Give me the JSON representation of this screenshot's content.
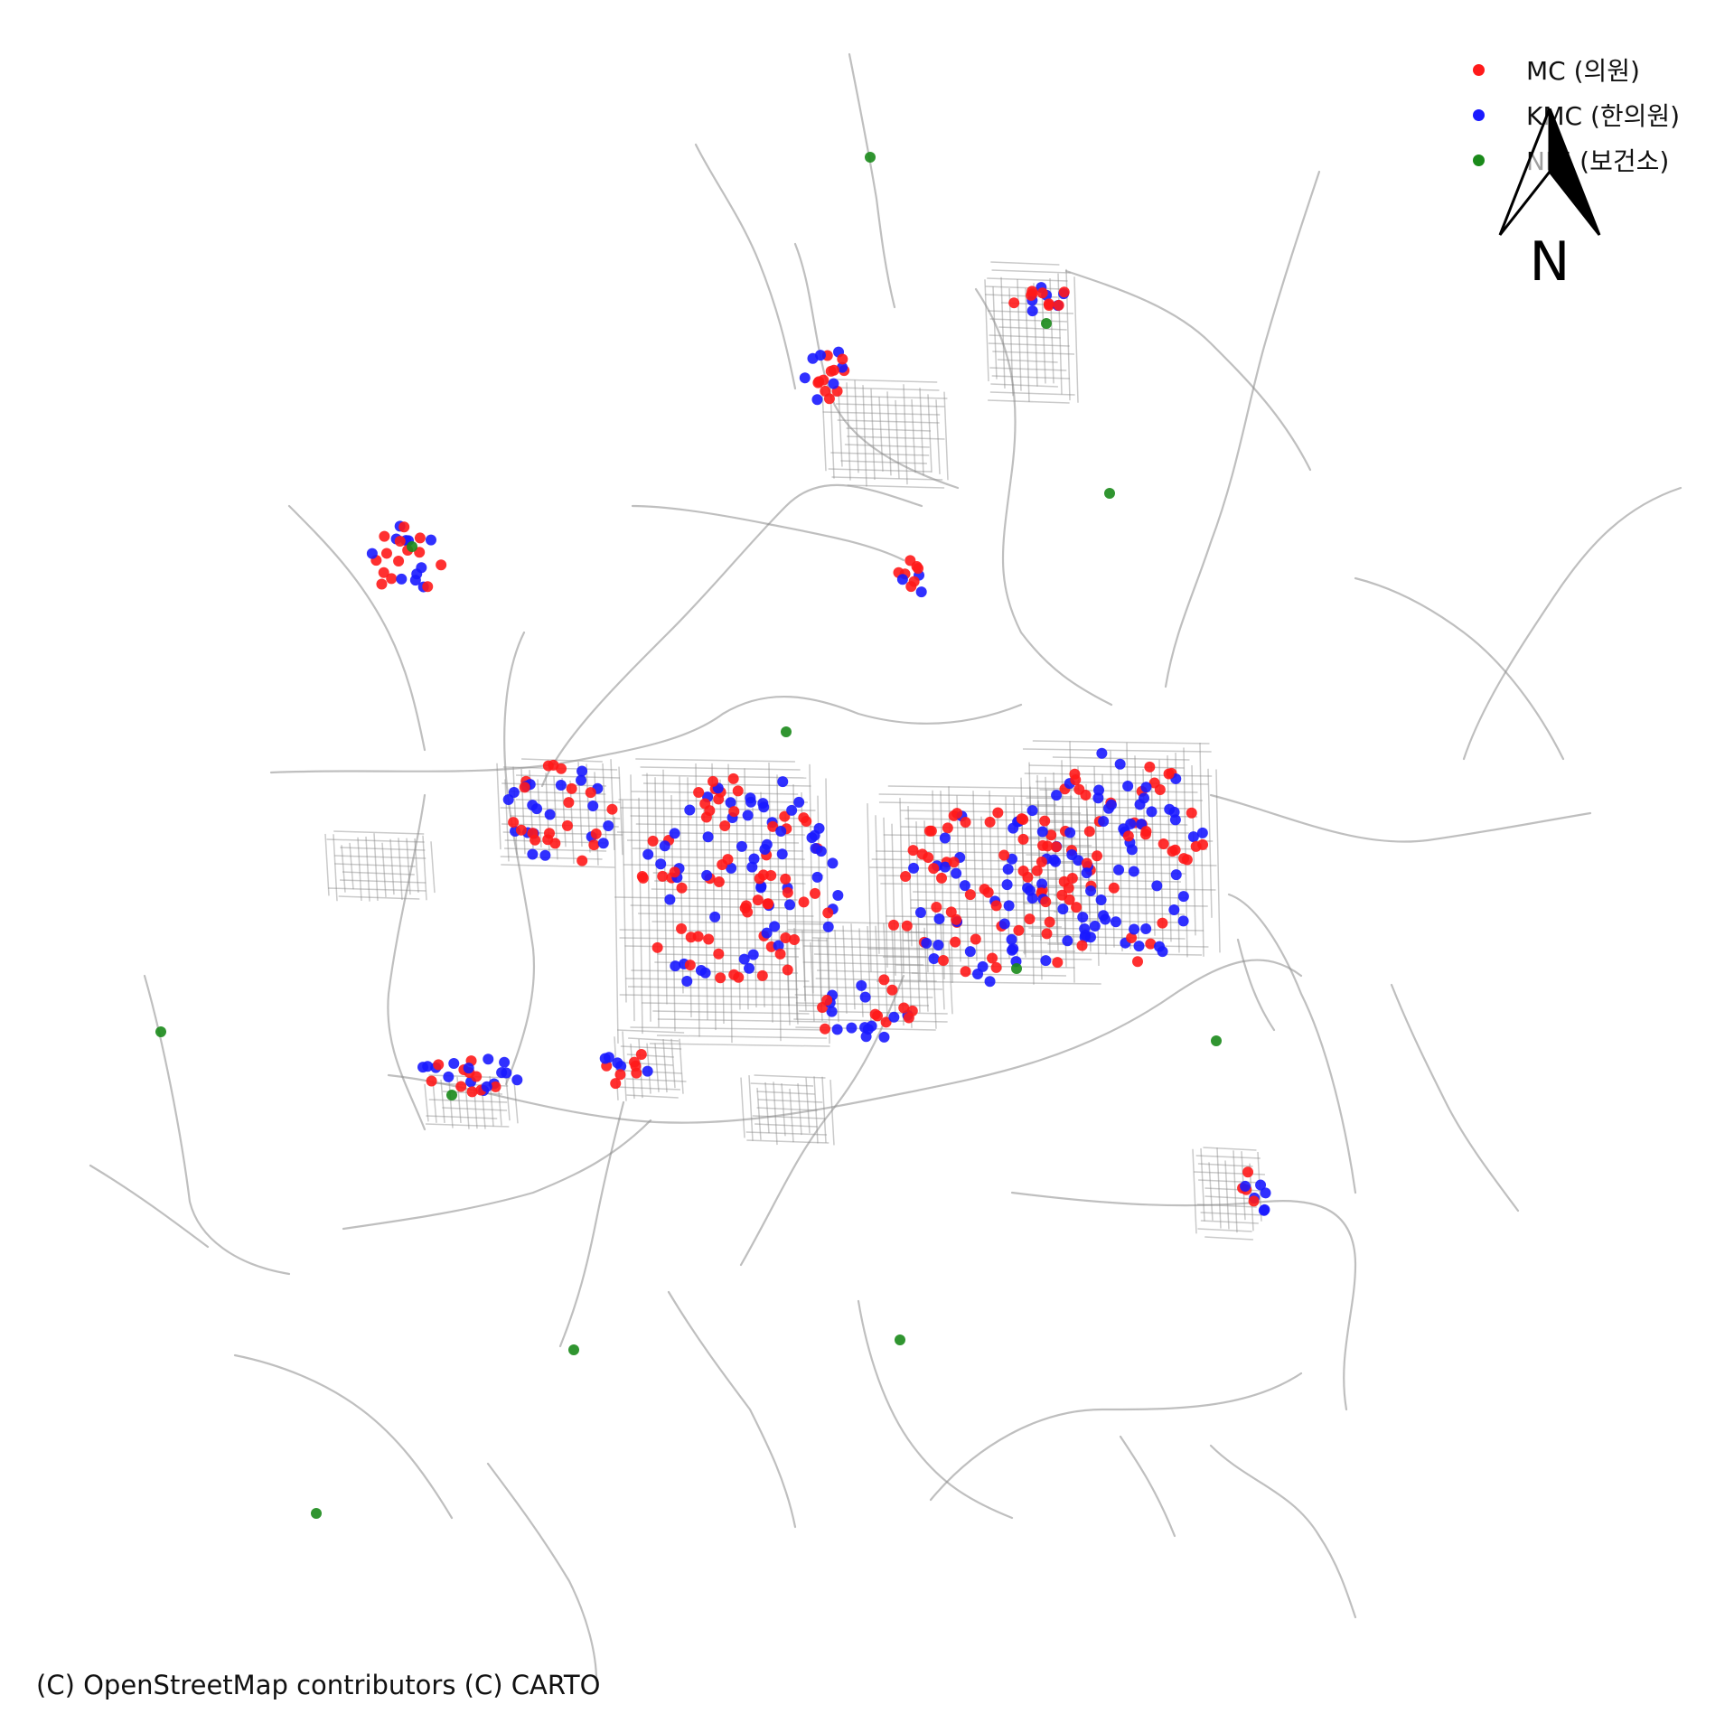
{
  "legend": {
    "items": [
      {
        "label": "MC (의원)",
        "color": "#ff1a1a"
      },
      {
        "label": "KMC (한의원)",
        "color": "#1a1aff"
      },
      {
        "label": "NHI (보건소)",
        "color": "#1a8a1a"
      }
    ]
  },
  "north_arrow": {
    "label": "N"
  },
  "attribution": "(C) OpenStreetMap contributors (C) CARTO",
  "colors": {
    "road": "#8a8a8a",
    "background": "#ffffff"
  }
}
